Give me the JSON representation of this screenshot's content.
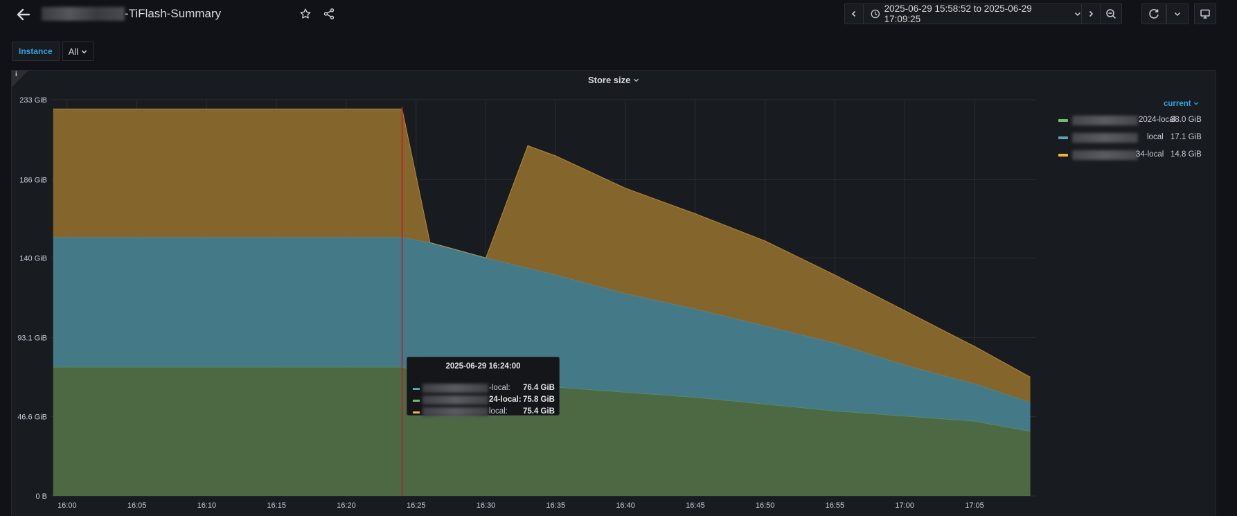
{
  "dashboard": {
    "title": "-TiFlash-Summary",
    "time_range": "2025-06-29 15:58:52 to 2025-06-29 17:09:25"
  },
  "variables": {
    "label": "Instance",
    "value": "All"
  },
  "panel": {
    "title": "Store size",
    "info": "i"
  },
  "legend": {
    "header": "current",
    "items": [
      {
        "name": "2024-local",
        "value": "38.0 GiB",
        "color": "#73bf69"
      },
      {
        "name": "local",
        "value": "17.1 GiB",
        "color": "#5fa2b5"
      },
      {
        "name": "34-local",
        "value": "14.8 GiB",
        "color": "#f2b33d"
      }
    ]
  },
  "tooltip": {
    "time": "2025-06-29 16:24:00",
    "rows": [
      {
        "name": "-local:",
        "value": "76.4 GiB",
        "color": "#5fa2b5"
      },
      {
        "name": "24-local:",
        "value": "75.8 GiB",
        "color": "#73bf69"
      },
      {
        "name": "local:",
        "value": "75.4 GiB",
        "color": "#f2b33d"
      }
    ]
  },
  "chart_data": {
    "type": "area",
    "stacked": true,
    "title": "Store size",
    "y_unit": "GiB",
    "ylim": [
      0,
      233
    ],
    "y_ticks": [
      "0 B",
      "46.6 GiB",
      "93.1 GiB",
      "140 GiB",
      "186 GiB",
      "233 GiB"
    ],
    "x_ticks": [
      "16:00",
      "16:05",
      "16:10",
      "16:15",
      "16:20",
      "16:25",
      "16:30",
      "16:35",
      "16:40",
      "16:45",
      "16:50",
      "16:55",
      "17:00",
      "17:05"
    ],
    "x_range": [
      "15:58:52",
      "17:09:25"
    ],
    "x": [
      "15:59",
      "16:24",
      "16:26",
      "16:30",
      "16:33",
      "16:35",
      "16:40",
      "16:45",
      "16:50",
      "16:55",
      "17:00",
      "17:05",
      "17:09"
    ],
    "series": [
      {
        "values": [
          75.8,
          75.8,
          71,
          68,
          66,
          64,
          61,
          58,
          54,
          50,
          47,
          44,
          38.0
        ],
        "color": "#73bf69"
      },
      {
        "values": [
          76.4,
          76.4,
          78,
          72,
          68,
          66,
          58,
          52,
          46,
          40,
          30,
          22,
          17.1
        ],
        "color": "#5fa2b5"
      },
      {
        "values": [
          75.4,
          75.4,
          0,
          0,
          72,
          70,
          62,
          56,
          50,
          40,
          32,
          22,
          14.8
        ],
        "color": "#f2b33d"
      }
    ],
    "cursor_x": "16:24",
    "grid": true
  }
}
